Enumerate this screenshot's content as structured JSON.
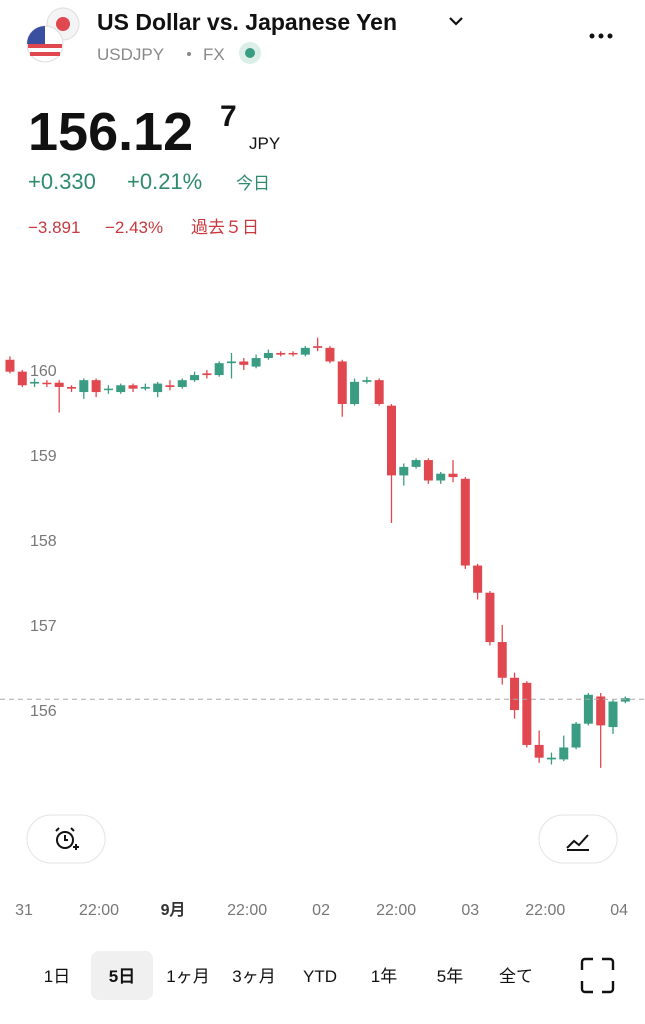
{
  "header": {
    "title": "US Dollar vs. Japanese Yen",
    "symbol": "USDJPY",
    "market": "FX",
    "price": "156.12",
    "price_last_digit": "7",
    "currency": "JPY",
    "change_today": "+0.330",
    "change_today_pct": "+0.21%",
    "today_label": "今日",
    "change_period": "−3.891",
    "change_period_pct": "−2.43%",
    "period_label": "過去５日"
  },
  "chart_data": {
    "type": "candlestick",
    "open": [
      160.12,
      159.98,
      159.84,
      159.85,
      159.85,
      159.8,
      159.74,
      159.88,
      159.77,
      159.74,
      159.82,
      159.78,
      159.74,
      159.82,
      159.8,
      159.88,
      159.96,
      159.94,
      160.08,
      160.1,
      160.04,
      160.14,
      160.2,
      160.2,
      160.18,
      160.28,
      160.26,
      160.1,
      159.6,
      159.86,
      159.88,
      159.58,
      158.76,
      158.86,
      158.94,
      158.7,
      158.78,
      158.72,
      157.7,
      157.38,
      156.8,
      156.38,
      156.32,
      155.59,
      155.42,
      155.42,
      155.56,
      155.84,
      156.16,
      155.8,
      156.1
    ],
    "high": [
      160.16,
      160.0,
      159.9,
      159.88,
      159.88,
      159.82,
      159.9,
      159.9,
      159.82,
      159.84,
      159.84,
      159.84,
      159.86,
      159.88,
      159.9,
      159.98,
      160.0,
      160.1,
      160.2,
      160.14,
      160.18,
      160.24,
      160.22,
      160.22,
      160.28,
      160.38,
      160.28,
      160.12,
      159.9,
      159.92,
      159.9,
      159.6,
      158.9,
      158.96,
      158.96,
      158.8,
      158.94,
      158.74,
      157.72,
      157.4,
      157.0,
      156.44,
      156.34,
      155.76,
      155.5,
      155.7,
      155.86,
      156.2,
      156.2,
      156.12,
      156.16
    ],
    "low": [
      159.96,
      159.8,
      159.8,
      159.8,
      159.5,
      159.74,
      159.66,
      159.68,
      159.72,
      159.72,
      159.74,
      159.76,
      159.68,
      159.76,
      159.78,
      159.86,
      159.9,
      159.92,
      159.9,
      160.0,
      160.02,
      160.12,
      160.16,
      160.16,
      160.16,
      160.22,
      160.08,
      159.45,
      159.58,
      159.84,
      159.58,
      158.2,
      158.64,
      158.84,
      158.66,
      158.66,
      158.68,
      157.66,
      157.3,
      156.76,
      156.3,
      155.9,
      155.56,
      155.38,
      155.36,
      155.4,
      155.54,
      155.82,
      155.32,
      155.72,
      156.08
    ],
    "close": [
      159.98,
      159.82,
      159.86,
      159.84,
      159.8,
      159.78,
      159.88,
      159.74,
      159.78,
      159.82,
      159.78,
      159.8,
      159.84,
      159.8,
      159.88,
      159.94,
      159.94,
      160.08,
      160.1,
      160.06,
      160.14,
      160.2,
      160.18,
      160.19,
      160.26,
      160.26,
      160.1,
      159.6,
      159.86,
      159.88,
      159.6,
      158.76,
      158.86,
      158.94,
      158.7,
      158.78,
      158.74,
      157.7,
      157.38,
      156.8,
      156.38,
      156.0,
      155.59,
      155.44,
      155.44,
      155.56,
      155.84,
      156.18,
      155.82,
      156.1,
      156.14
    ],
    "up_color": "#3a9c82",
    "down_color": "#e0474f",
    "price_line": 156.127,
    "ylim": [
      155.06,
      160.47
    ],
    "yticks": [
      156,
      157,
      158,
      159,
      160
    ],
    "xlim": [
      -0.81,
      51.6
    ],
    "xticks": [
      {
        "value": 1.14,
        "label": "31"
      },
      {
        "value": 7.24,
        "label": "22:00"
      },
      {
        "value": 13.25,
        "label": "9月"
      },
      {
        "value": 19.27,
        "label": "22:00"
      },
      {
        "value": 25.28,
        "label": "02"
      },
      {
        "value": 31.38,
        "label": "22:00"
      },
      {
        "value": 37.4,
        "label": "03"
      },
      {
        "value": 43.5,
        "label": "22:00"
      },
      {
        "value": 49.5,
        "label": "04"
      }
    ]
  },
  "ranges": [
    "1日",
    "5日",
    "1ヶ月",
    "3ヶ月",
    "YTD",
    "1年",
    "5年",
    "全て"
  ],
  "selected_range": 1
}
